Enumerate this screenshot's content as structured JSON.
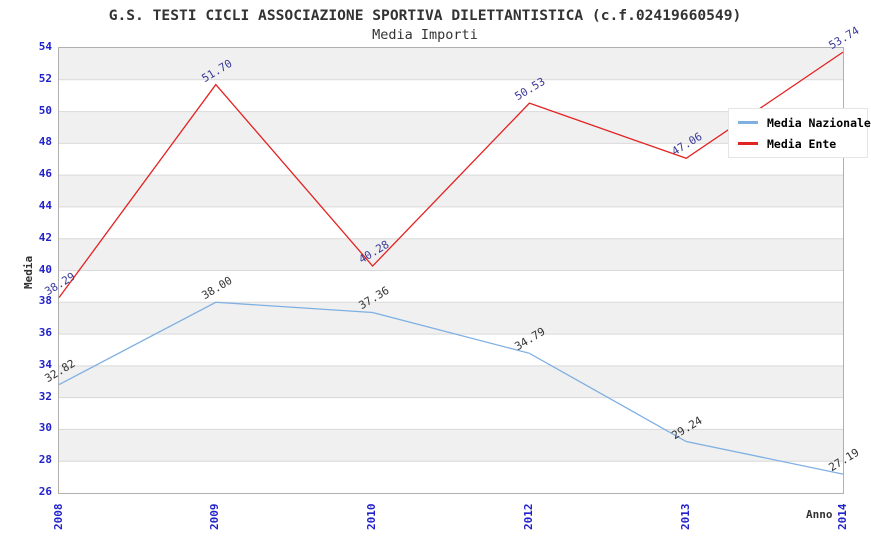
{
  "header": {
    "title": "G.S. TESTI CICLI ASSOCIAZIONE SPORTIVA DILETTANTISTICA (c.f.02419660549)",
    "subtitle": "Media Importi"
  },
  "chart_data": {
    "type": "line",
    "title": "G.S. TESTI CICLI ASSOCIAZIONE SPORTIVA DILETTANTISTICA (c.f.02419660549)",
    "subtitle": "Media Importi",
    "xlabel": "Anno",
    "ylabel": "Media",
    "categories": [
      "2008",
      "2009",
      "2010",
      "2012",
      "2013",
      "2014"
    ],
    "series": [
      {
        "name": "Media Nazionale",
        "color": "#7fb0e2",
        "label_color": "#333333",
        "values": [
          32.82,
          38.0,
          37.36,
          34.79,
          29.24,
          27.19
        ]
      },
      {
        "name": "Media Ente",
        "color": "#e32222",
        "label_color": "#3a3a99",
        "values": [
          38.29,
          51.7,
          40.28,
          50.53,
          47.06,
          53.74
        ]
      }
    ],
    "ylim": [
      26,
      54
    ],
    "ytick_step": 2,
    "grid": "horizontal",
    "legend_position": "top-right",
    "tick_label_color": "#2222cc",
    "band_color_alt": "#f0f0f0",
    "band_color_base": "#ffffff",
    "gridline_color": "#d9d9d9",
    "frame_color": "#b0b0b0",
    "data_label_decimals": 2
  }
}
